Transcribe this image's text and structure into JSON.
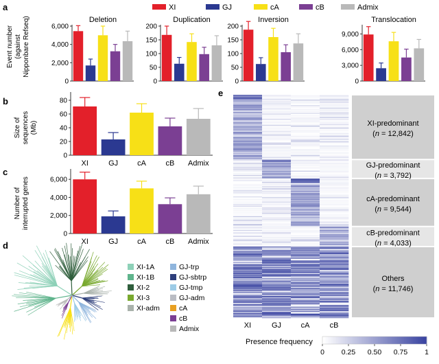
{
  "colors": {
    "XI": "#e3202a",
    "GJ": "#2b3991",
    "cA": "#f7e017",
    "cB": "#7b3f93",
    "Admix": "#b9b9b9",
    "XI-1A": "#8ed1b8",
    "XI-1B": "#5fb48c",
    "XI-2": "#2f5e3c",
    "XI-3": "#79a92f",
    "XI-adm": "#a9b2ab",
    "GJ-trp": "#8fb5dd",
    "GJ-sbtrp": "#2e3f7b",
    "GJ-tmp": "#9ccbe6",
    "GJ-adm": "#b9bcc3",
    "heat_low": "#ffffff",
    "heat_high": "#3a44a1",
    "group_box": "#cccccc"
  },
  "legend_top": [
    "XI",
    "GJ",
    "cA",
    "cB",
    "Admix"
  ],
  "panel_labels": {
    "a": "a",
    "b": "b",
    "c": "c",
    "d": "d",
    "e": "e"
  },
  "panel_a": {
    "ylabel": [
      "Event number",
      "(against",
      "Nipponbare Refseq)"
    ],
    "charts": [
      {
        "title": "Deletion",
        "ylim": [
          0,
          6000
        ],
        "ticks": [
          "0",
          "2,000",
          "4,000",
          "6,000"
        ],
        "tickvals": [
          0,
          2000,
          4000,
          6000
        ],
        "values": [
          5450,
          1700,
          5000,
          3250,
          4350
        ],
        "errors": [
          600,
          700,
          1000,
          750,
          1100
        ]
      },
      {
        "title": "Duplication",
        "ylim": [
          0,
          200
        ],
        "ticks": [
          "0",
          "50",
          "100",
          "150",
          "200"
        ],
        "tickvals": [
          0,
          50,
          100,
          150,
          200
        ],
        "values": [
          168,
          63,
          142,
          98,
          130
        ],
        "errors": [
          32,
          23,
          30,
          25,
          35
        ]
      },
      {
        "title": "Inversion",
        "ylim": [
          0,
          200
        ],
        "ticks": [
          "0",
          "50",
          "100",
          "150",
          "200"
        ],
        "tickvals": [
          0,
          50,
          100,
          150,
          200
        ],
        "values": [
          187,
          62,
          160,
          105,
          137
        ],
        "errors": [
          30,
          23,
          32,
          27,
          35
        ]
      },
      {
        "title": "Translocation",
        "ylim": [
          0,
          10500
        ],
        "ticks": [
          "0",
          "3,000",
          "6,000",
          "9,000"
        ],
        "tickvals": [
          0,
          3000,
          6000,
          9000
        ],
        "values": [
          8900,
          2450,
          7600,
          4500,
          6250
        ],
        "errors": [
          1500,
          1000,
          1700,
          1600,
          1700
        ]
      }
    ]
  },
  "chart_data": [
    {
      "type": "bar",
      "panel": "b",
      "ylabel": [
        "Size of",
        "sequences",
        "(Mb)"
      ],
      "categories": [
        "XI",
        "GJ",
        "cA",
        "cB",
        "Admix"
      ],
      "values": [
        71,
        23,
        62,
        42,
        53
      ],
      "errors": [
        13,
        10,
        13,
        12,
        15
      ],
      "ylim": [
        0,
        90
      ],
      "ticks": [
        "0",
        "20",
        "40",
        "60",
        "80"
      ],
      "tickvals": [
        0,
        20,
        40,
        60,
        80
      ]
    },
    {
      "type": "bar",
      "panel": "c",
      "ylabel": [
        "Number of",
        "interrupted genes"
      ],
      "categories": [
        "XI",
        "GJ",
        "cA",
        "cB",
        "Admix"
      ],
      "values": [
        6000,
        1900,
        5000,
        3250,
        4350
      ],
      "errors": [
        800,
        600,
        800,
        700,
        900
      ],
      "ylim": [
        0,
        7000
      ],
      "ticks": [
        "0",
        "2,000",
        "4,000",
        "6,000"
      ],
      "tickvals": [
        0,
        2000,
        4000,
        6000
      ]
    }
  ],
  "panel_d": {
    "legend_col1": [
      "XI-1A",
      "XI-1B",
      "XI-2",
      "XI-3",
      "XI-adm"
    ],
    "legend_col2": [
      "GJ-trp",
      "GJ-sbtrp",
      "GJ-tmp",
      "GJ-adm",
      "cA",
      "cB",
      "Admix"
    ]
  },
  "panel_e": {
    "columns": [
      "XI",
      "GJ",
      "cA",
      "cB"
    ],
    "groups": [
      {
        "name": "XI-predominant",
        "n": "(n = 12,842)",
        "frac": 0.29,
        "strong": 0
      },
      {
        "name": "GJ-predominant",
        "n": "(n = 3,792)",
        "frac": 0.085,
        "strong": 1
      },
      {
        "name": "cA-predominant",
        "n": "(n = 9,544)",
        "frac": 0.215,
        "strong": 2
      },
      {
        "name": "cB-predominant",
        "n": "(n = 4,033)",
        "frac": 0.09,
        "strong": 3
      },
      {
        "name": "Others",
        "n": "(n = 11,746)",
        "frac": 0.32,
        "strong": -1
      }
    ],
    "colorbar_label": "Presence frequency",
    "colorbar_ticks": [
      "0",
      "0.25",
      "0.50",
      "0.75",
      "1"
    ]
  }
}
